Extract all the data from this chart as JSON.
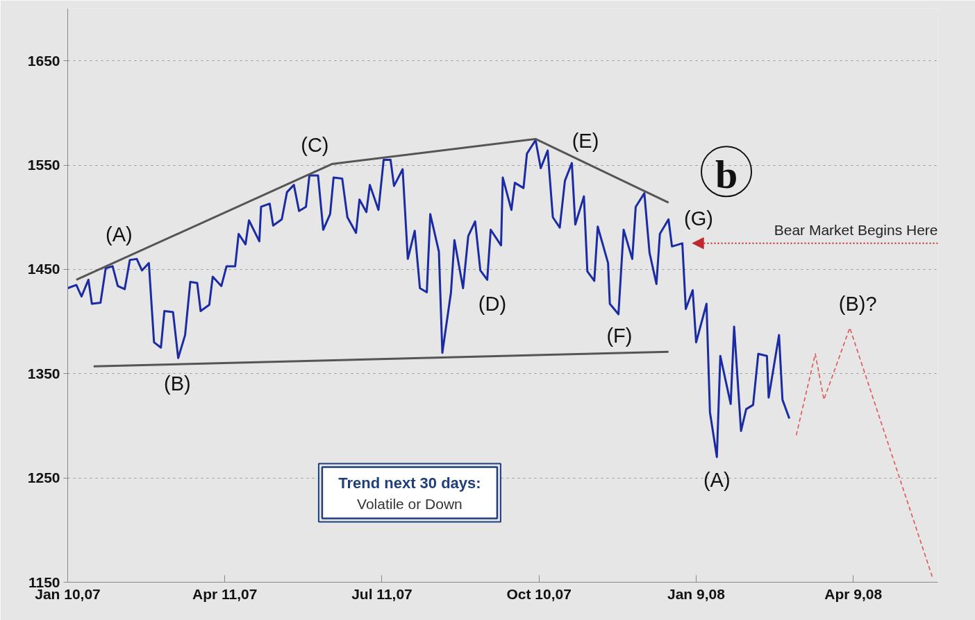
{
  "chart_data": {
    "type": "line",
    "x": [
      "2007-01-10",
      "2007-01-15",
      "2007-01-18",
      "2007-01-22",
      "2007-01-24",
      "2007-01-29",
      "2007-02-01",
      "2007-02-05",
      "2007-02-08",
      "2007-02-12",
      "2007-02-15",
      "2007-02-19",
      "2007-02-22",
      "2007-02-26",
      "2007-03-01",
      "2007-03-05",
      "2007-03-07",
      "2007-03-12",
      "2007-03-15",
      "2007-03-19",
      "2007-03-22",
      "2007-03-26",
      "2007-03-28",
      "2007-04-02",
      "2007-04-04",
      "2007-04-09",
      "2007-04-12",
      "2007-04-17",
      "2007-04-19",
      "2007-04-23",
      "2007-04-25",
      "2007-05-01",
      "2007-05-02",
      "2007-05-07",
      "2007-05-09",
      "2007-05-14",
      "2007-05-17",
      "2007-05-21",
      "2007-05-24",
      "2007-05-28",
      "2007-05-30",
      "2007-06-04",
      "2007-06-07",
      "2007-06-11",
      "2007-06-13",
      "2007-06-18",
      "2007-06-21",
      "2007-06-26",
      "2007-06-28",
      "2007-07-02",
      "2007-07-04",
      "2007-07-09",
      "2007-07-12",
      "2007-07-16",
      "2007-07-18",
      "2007-07-23",
      "2007-07-26",
      "2007-07-30",
      "2007-08-02",
      "2007-08-06",
      "2007-08-08",
      "2007-08-13",
      "2007-08-15",
      "2007-08-20",
      "2007-08-22",
      "2007-08-27",
      "2007-08-30",
      "2007-09-03",
      "2007-09-06",
      "2007-09-10",
      "2007-09-12",
      "2007-09-18",
      "2007-09-19",
      "2007-09-24",
      "2007-09-26",
      "2007-10-01",
      "2007-10-03",
      "2007-10-08",
      "2007-10-11",
      "2007-10-15",
      "2007-10-18",
      "2007-10-22",
      "2007-10-25",
      "2007-10-29",
      "2007-10-31",
      "2007-11-05",
      "2007-11-07",
      "2007-11-11",
      "2007-11-13",
      "2007-11-19",
      "2007-11-20",
      "2007-11-25",
      "2007-11-28",
      "2007-12-03",
      "2007-12-05",
      "2007-12-10",
      "2007-12-13",
      "2007-12-17",
      "2007-12-19",
      "2007-12-24",
      "2007-12-26",
      "2008-01-01",
      "2008-01-03",
      "2008-01-07",
      "2008-01-09",
      "2008-01-15",
      "2008-01-17",
      "2008-01-21",
      "2008-01-23",
      "2008-01-29",
      "2008-01-31",
      "2008-02-04",
      "2008-02-07",
      "2008-02-11",
      "2008-02-14",
      "2008-02-19",
      "2008-02-20",
      "2008-02-26",
      "2008-02-28",
      "2008-03-03"
    ],
    "series": [
      {
        "color": "#1b2ca3",
        "values": [
          1432,
          1435,
          1424,
          1440,
          1417,
          1418,
          1451,
          1453,
          1434,
          1431,
          1459,
          1460,
          1449,
          1456,
          1380,
          1375,
          1410,
          1409,
          1365,
          1387,
          1438,
          1437,
          1410,
          1416,
          1443,
          1434,
          1453,
          1453,
          1484,
          1474,
          1497,
          1477,
          1510,
          1513,
          1492,
          1498,
          1524,
          1531,
          1506,
          1510,
          1540,
          1540,
          1488,
          1503,
          1538,
          1537,
          1500,
          1485,
          1517,
          1505,
          1531,
          1507,
          1555,
          1555,
          1530,
          1546,
          1460,
          1487,
          1432,
          1428,
          1503,
          1467,
          1370,
          1428,
          1478,
          1432,
          1482,
          1496,
          1449,
          1440,
          1488,
          1473,
          1538,
          1507,
          1533,
          1528,
          1561,
          1574,
          1547,
          1564,
          1500,
          1490,
          1535,
          1552,
          1493,
          1520,
          1448,
          1439,
          1491,
          1456,
          1417,
          1407,
          1488,
          1460,
          1510,
          1523,
          1466,
          1436,
          1484,
          1498,
          1472,
          1475,
          1412,
          1430,
          1380,
          1417,
          1313,
          1270,
          1367,
          1321,
          1395,
          1295,
          1316,
          1320,
          1369,
          1367,
          1327,
          1387,
          1325,
          1307
        ]
      },
      {
        "color": "#e05555",
        "line_style": "dashed",
        "x": [
          "2008-03-07",
          "2008-03-18",
          "2008-03-23",
          "2008-04-07",
          "2008-05-25"
        ],
        "values": [
          1291,
          1369,
          1325,
          1394,
          1154
        ]
      },
      {
        "color": "#555555",
        "x": [
          "2007-01-15",
          "2007-06-12",
          "2007-10-08",
          "2007-12-24"
        ],
        "values": [
          1440,
          1551,
          1575,
          1514
        ]
      },
      {
        "color": "#555555",
        "x": [
          "2007-01-25",
          "2007-12-24"
        ],
        "values": [
          1357,
          1371
        ]
      }
    ],
    "xlim": [
      "2007-01-10",
      "2008-05-28"
    ],
    "xticks": [
      {
        "value": "2007-01-10",
        "label": "Jan 10,07"
      },
      {
        "value": "2007-04-11",
        "label": "Apr 11,07"
      },
      {
        "value": "2007-07-11",
        "label": "Jul 11,07"
      },
      {
        "value": "2007-10-10",
        "label": "Oct 10,07"
      },
      {
        "value": "2008-01-09",
        "label": "Jan 9,08"
      },
      {
        "value": "2008-04-09",
        "label": "Apr 9,08"
      }
    ],
    "ylim": [
      1150,
      1700
    ],
    "yticks": [
      1150,
      1250,
      1350,
      1450,
      1550,
      1650
    ],
    "grid": "y",
    "annotations": [
      "b",
      "Trend next 30 days:",
      "Volatile or Down",
      "(A)",
      "(B)",
      "(C)",
      "(D)",
      "(E)",
      "(F)",
      "(G)",
      "(A)",
      "(B)?",
      "Bear Market Begins Here"
    ]
  }
}
